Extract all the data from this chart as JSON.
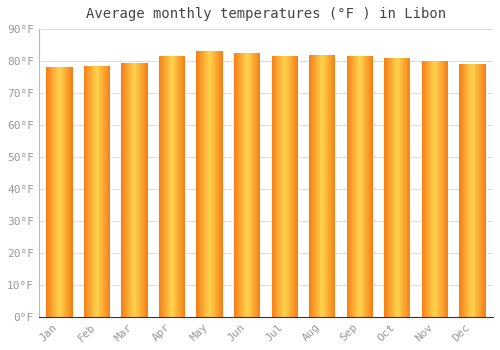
{
  "title": "Average monthly temperatures (°F ) in Libon",
  "months": [
    "Jan",
    "Feb",
    "Mar",
    "Apr",
    "May",
    "Jun",
    "Jul",
    "Aug",
    "Sep",
    "Oct",
    "Nov",
    "Dec"
  ],
  "values": [
    78,
    78.5,
    79.5,
    81.5,
    83,
    82.5,
    81.5,
    82,
    81.5,
    81,
    80,
    79
  ],
  "bar_color_center": "#FFD54F",
  "bar_color_edge": "#F57F17",
  "bar_color_mid": "#FFB300",
  "background_color": "#FFFFFF",
  "plot_bg_color": "#FFFFFF",
  "grid_color": "#DDDDDD",
  "ytick_labels": [
    "0°F",
    "10°F",
    "20°F",
    "30°F",
    "40°F",
    "50°F",
    "60°F",
    "70°F",
    "80°F",
    "90°F"
  ],
  "ytick_values": [
    0,
    10,
    20,
    30,
    40,
    50,
    60,
    70,
    80,
    90
  ],
  "ylim": [
    0,
    90
  ],
  "title_fontsize": 10,
  "tick_fontsize": 8,
  "tick_font_color": "#999999",
  "title_font_color": "#444444"
}
